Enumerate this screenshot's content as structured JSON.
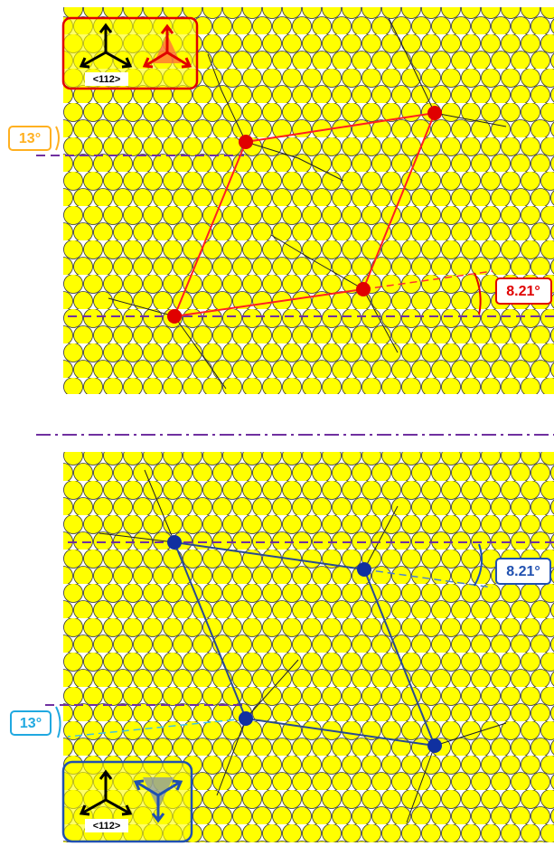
{
  "top": {
    "inset": {
      "direction": "<112>"
    },
    "rotation_angle": "13°",
    "mismatch_angle": "8.21°"
  },
  "bottom": {
    "inset": {
      "direction": "<112>"
    },
    "rotation_angle": "13°",
    "mismatch_angle": "8.21°"
  }
}
